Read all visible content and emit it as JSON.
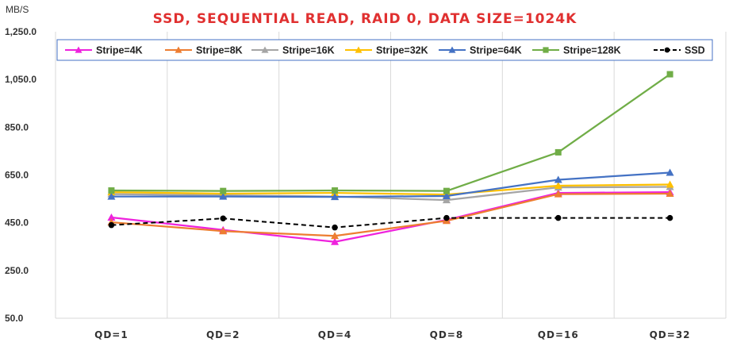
{
  "chart_data": {
    "type": "line",
    "title": "SSD, SEQUENTIAL READ, RAID 0, DATA SIZE=1024K",
    "ylabel": "MB/S",
    "xlabel": "",
    "categories": [
      "QD=1",
      "QD=2",
      "QD=4",
      "QD=8",
      "QD=16",
      "QD=32"
    ],
    "ylim": [
      50,
      1250
    ],
    "yticks": [
      "1,250.0",
      "1,050.0",
      "850.0",
      "650.0",
      "450.0",
      "250.0",
      "50.0"
    ],
    "ytick_values": [
      1250,
      1050,
      850,
      650,
      450,
      250,
      50
    ],
    "grid": "vertical",
    "legend_position": "top",
    "series": [
      {
        "name": "Stripe=4K",
        "color": "#ee22dd",
        "marker": "triangle",
        "dash": false,
        "values": [
          472,
          420,
          370,
          462,
          575,
          578
        ]
      },
      {
        "name": "Stripe=8K",
        "color": "#ed7d31",
        "marker": "triangle",
        "dash": false,
        "values": [
          452,
          415,
          395,
          458,
          570,
          572
        ]
      },
      {
        "name": "Stripe=16K",
        "color": "#a5a5a5",
        "marker": "triangle",
        "dash": false,
        "values": [
          570,
          565,
          560,
          545,
          598,
          600
        ]
      },
      {
        "name": "Stripe=32K",
        "color": "#ffc000",
        "marker": "triangle",
        "dash": false,
        "values": [
          578,
          572,
          575,
          568,
          605,
          610
        ]
      },
      {
        "name": "Stripe=64K",
        "color": "#4472c4",
        "marker": "triangle",
        "dash": false,
        "values": [
          560,
          560,
          558,
          562,
          630,
          660
        ]
      },
      {
        "name": "Stripe=128K",
        "color": "#70ad47",
        "marker": "square",
        "dash": false,
        "values": [
          585,
          583,
          585,
          583,
          745,
          1072
        ]
      },
      {
        "name": "SSD",
        "color": "#000000",
        "marker": "circle",
        "dash": true,
        "values": [
          440,
          468,
          430,
          470,
          470,
          470
        ]
      }
    ]
  }
}
